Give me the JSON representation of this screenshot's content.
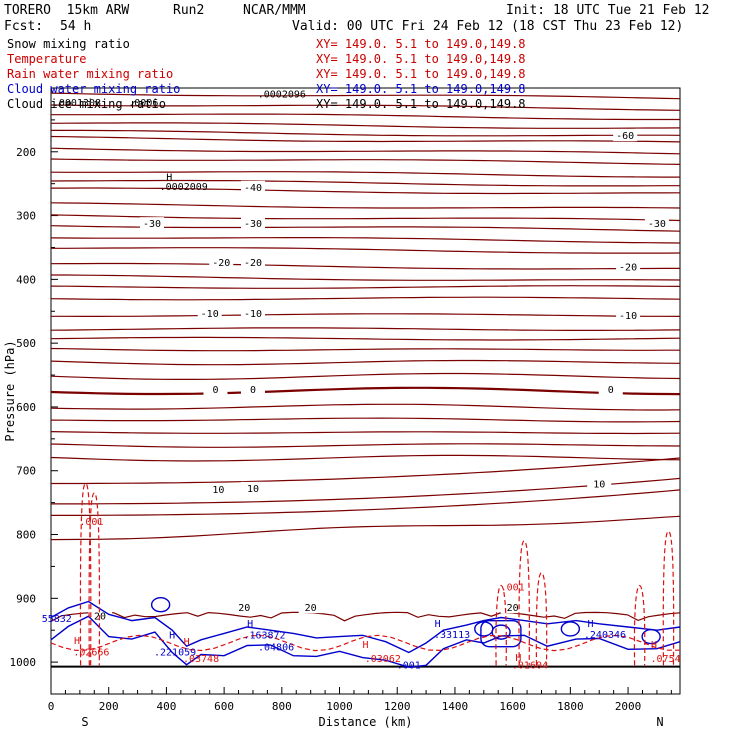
{
  "header": {
    "model": "TORERO  15km ARW",
    "run": "Run2",
    "org": "NCAR/MMM",
    "init": "Init: 18 UTC Tue 21 Feb 12",
    "fcst_label": "Fcst:",
    "fcst_value": "54 h",
    "valid": "Valid: 00 UTC Fri 24 Feb 12 (18 CST Thu 23 Feb 12)"
  },
  "legend": [
    {
      "name": "Snow mixing ratio",
      "color": "#000000",
      "xy": ""
    },
    {
      "name": "Temperature",
      "color": "#cc0000",
      "xy": "XY= 149.0.  5.1 to 149.0,149.8"
    },
    {
      "name": "Rain water mixing ratio",
      "color": "#cc0000",
      "xy": "XY= 149.0.  5.1 to 149.0,149.8"
    },
    {
      "name": "Cloud water mixing ratio",
      "color": "#0000cc",
      "xy": "XY= 149.0.  5.1 to 149.0,149.8"
    },
    {
      "name": "Cloud ice mixing ratio",
      "color": "#000000",
      "xy": "XY= 149.0.  5.1 to 149.0,149.8"
    }
  ],
  "first_xy": "XY= 149.0.  5.1 to 149.0,149.8",
  "colors": {
    "temperature": "#7a0000",
    "rain": "#dd1111",
    "cloud": "#0000cc",
    "snow": "#000000"
  },
  "chart_data": {
    "type": "contour cross-section",
    "xlabel": "Distance (km)",
    "ylabel": "Pressure (hPa)",
    "xlim": [
      0,
      2180
    ],
    "ylim": [
      1050,
      100
    ],
    "x_ticks": [
      0,
      200,
      400,
      600,
      800,
      1000,
      1200,
      1400,
      1600,
      1800,
      2000
    ],
    "y_ticks": [
      200,
      300,
      400,
      500,
      600,
      700,
      800,
      900,
      1000
    ],
    "left_end": "S",
    "right_end": "N",
    "temperature_labels": [
      {
        "text": "-60",
        "x": 1990,
        "p": 177
      },
      {
        "text": "-40",
        "x": 700,
        "p": 258
      },
      {
        "text": "-30",
        "x": 350,
        "p": 315
      },
      {
        "text": "-30",
        "x": 700,
        "p": 315
      },
      {
        "text": "-30",
        "x": 2100,
        "p": 315
      },
      {
        "text": "-20",
        "x": 590,
        "p": 376
      },
      {
        "text": "-20",
        "x": 700,
        "p": 376
      },
      {
        "text": "-20",
        "x": 2000,
        "p": 383
      },
      {
        "text": "-10",
        "x": 550,
        "p": 456
      },
      {
        "text": "-10",
        "x": 700,
        "p": 456
      },
      {
        "text": "-10",
        "x": 2000,
        "p": 459
      },
      {
        "text": "0",
        "x": 570,
        "p": 575
      },
      {
        "text": "0",
        "x": 700,
        "p": 575
      },
      {
        "text": "0",
        "x": 1940,
        "p": 575
      },
      {
        "text": "10",
        "x": 580,
        "p": 732
      },
      {
        "text": "10",
        "x": 700,
        "p": 730
      },
      {
        "text": "10",
        "x": 1900,
        "p": 723
      },
      {
        "text": "20",
        "x": 170,
        "p": 930
      },
      {
        "text": "20",
        "x": 670,
        "p": 917
      },
      {
        "text": "20",
        "x": 900,
        "p": 917
      },
      {
        "text": "20",
        "x": 1600,
        "p": 917
      }
    ],
    "rain_labels": [
      {
        "text": ".001",
        "x": 140,
        "p": 785
      },
      {
        "text": ".001",
        "x": 1600,
        "p": 888
      },
      {
        "text": "H",
        "x": 90,
        "p": 972
      },
      {
        "text": ".02666",
        "x": 140,
        "p": 990
      },
      {
        "text": "H",
        "x": 470,
        "p": 973
      },
      {
        "text": ".03748",
        "x": 520,
        "p": 1000
      },
      {
        "text": "H",
        "x": 1090,
        "p": 978
      },
      {
        "text": ".03062",
        "x": 1150,
        "p": 1000
      },
      {
        "text": "H",
        "x": 1620,
        "p": 998
      },
      {
        "text": ".01604",
        "x": 1660,
        "p": 1010
      },
      {
        "text": "H",
        "x": 2090,
        "p": 978
      },
      {
        "text": ".0754",
        "x": 2130,
        "p": 1000
      }
    ],
    "cloud_labels": [
      {
        "text": "55832",
        "x": 20,
        "p": 937
      },
      {
        "text": "H",
        "x": 420,
        "p": 963
      },
      {
        "text": ".221059",
        "x": 430,
        "p": 990
      },
      {
        "text": "H",
        "x": 690,
        "p": 945
      },
      {
        "text": ".163872",
        "x": 740,
        "p": 963
      },
      {
        "text": ".04806",
        "x": 780,
        "p": 982
      },
      {
        "text": "H",
        "x": 1340,
        "p": 945
      },
      {
        "text": ".33113",
        "x": 1390,
        "p": 962
      },
      {
        "text": ".001",
        "x": 1240,
        "p": 1010
      },
      {
        "text": "H",
        "x": 1870,
        "p": 945
      },
      {
        "text": ".240346",
        "x": 1920,
        "p": 962
      }
    ],
    "snow_labels": [
      {
        "text": ".0001308",
        "x": 90,
        "p": 128
      },
      {
        "text": ".0006",
        "x": 320,
        "p": 128
      },
      {
        "text": ".0002096",
        "x": 800,
        "p": 115
      },
      {
        "text": "H",
        "x": 410,
        "p": 245
      },
      {
        "text": ".0002009",
        "x": 460,
        "p": 260
      }
    ]
  }
}
